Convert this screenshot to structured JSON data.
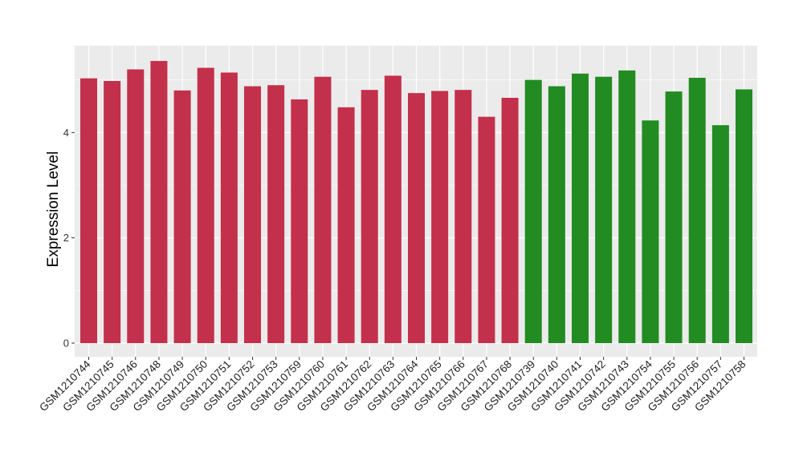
{
  "chart_data": {
    "type": "bar",
    "title": "",
    "xlabel": "",
    "ylabel": "Expression Level",
    "ylim": [
      0,
      5.65
    ],
    "yticks": [
      0,
      2,
      4
    ],
    "grid": true,
    "legend": "none",
    "panel_background": "#ebebeb",
    "grid_color": "#ffffff",
    "categories": [
      "GSM1210744",
      "GSM1210745",
      "GSM1210746",
      "GSM1210748",
      "GSM1210749",
      "GSM1210750",
      "GSM1210751",
      "GSM1210752",
      "GSM1210753",
      "GSM1210759",
      "GSM1210760",
      "GSM1210761",
      "GSM1210762",
      "GSM1210763",
      "GSM1210764",
      "GSM1210765",
      "GSM1210766",
      "GSM1210767",
      "GSM1210768",
      "GSM1210739",
      "GSM1210740",
      "GSM1210741",
      "GSM1210742",
      "GSM1210743",
      "GSM1210754",
      "GSM1210755",
      "GSM1210756",
      "GSM1210757",
      "GSM1210758"
    ],
    "values": [
      5.03,
      4.98,
      5.2,
      5.36,
      4.8,
      5.23,
      5.14,
      4.88,
      4.9,
      4.63,
      5.06,
      4.48,
      4.81,
      5.08,
      4.75,
      4.79,
      4.81,
      4.3,
      4.66,
      5.0,
      4.88,
      5.12,
      5.06,
      5.18,
      4.23,
      4.78,
      5.04,
      4.14,
      4.82
    ],
    "colors": [
      "#c3304b",
      "#c3304b",
      "#c3304b",
      "#c3304b",
      "#c3304b",
      "#c3304b",
      "#c3304b",
      "#c3304b",
      "#c3304b",
      "#c3304b",
      "#c3304b",
      "#c3304b",
      "#c3304b",
      "#c3304b",
      "#c3304b",
      "#c3304b",
      "#c3304b",
      "#c3304b",
      "#c3304b",
      "#228b22",
      "#228b22",
      "#228b22",
      "#228b22",
      "#228b22",
      "#228b22",
      "#228b22",
      "#228b22",
      "#228b22",
      "#228b22"
    ]
  }
}
